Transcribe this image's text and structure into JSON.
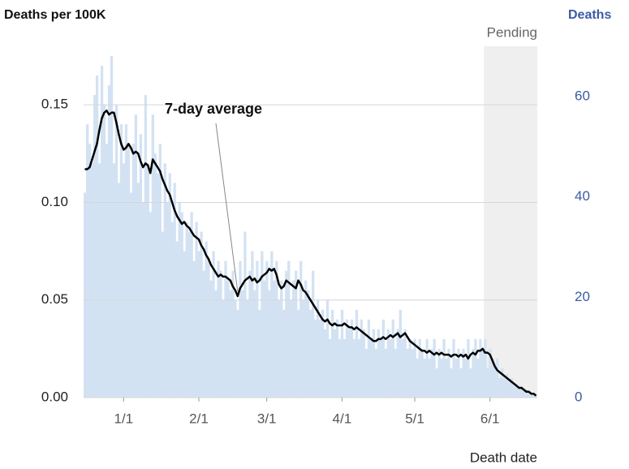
{
  "chart_data": {
    "type": "bar_line",
    "title": "Deaths per 100K",
    "y2_title": "Deaths",
    "x_label": "Death date",
    "pending_label": "Pending",
    "pending_from": "5/30",
    "annotation": {
      "text": "7-day average",
      "x": "2/17"
    },
    "x": [
      "12/16",
      "12/17",
      "12/18",
      "12/19",
      "12/20",
      "12/21",
      "12/22",
      "12/23",
      "12/24",
      "12/25",
      "12/26",
      "12/27",
      "12/28",
      "12/29",
      "12/30",
      "12/31",
      "1/1",
      "1/2",
      "1/3",
      "1/4",
      "1/5",
      "1/6",
      "1/7",
      "1/8",
      "1/9",
      "1/10",
      "1/11",
      "1/12",
      "1/13",
      "1/14",
      "1/15",
      "1/16",
      "1/17",
      "1/18",
      "1/19",
      "1/20",
      "1/21",
      "1/22",
      "1/23",
      "1/24",
      "1/25",
      "1/26",
      "1/27",
      "1/28",
      "1/29",
      "1/30",
      "1/31",
      "2/1",
      "2/2",
      "2/3",
      "2/4",
      "2/5",
      "2/6",
      "2/7",
      "2/8",
      "2/9",
      "2/10",
      "2/11",
      "2/12",
      "2/13",
      "2/14",
      "2/15",
      "2/16",
      "2/17",
      "2/18",
      "2/19",
      "2/20",
      "2/21",
      "2/22",
      "2/23",
      "2/24",
      "2/25",
      "2/26",
      "2/27",
      "2/28",
      "3/1",
      "3/2",
      "3/3",
      "3/4",
      "3/5",
      "3/6",
      "3/7",
      "3/8",
      "3/9",
      "3/10",
      "3/11",
      "3/12",
      "3/13",
      "3/14",
      "3/15",
      "3/16",
      "3/17",
      "3/18",
      "3/19",
      "3/20",
      "3/21",
      "3/22",
      "3/23",
      "3/24",
      "3/25",
      "3/26",
      "3/27",
      "3/28",
      "3/29",
      "3/30",
      "3/31",
      "4/1",
      "4/2",
      "4/3",
      "4/4",
      "4/5",
      "4/6",
      "4/7",
      "4/8",
      "4/9",
      "4/10",
      "4/11",
      "4/12",
      "4/13",
      "4/14",
      "4/15",
      "4/16",
      "4/17",
      "4/18",
      "4/19",
      "4/20",
      "4/21",
      "4/22",
      "4/23",
      "4/24",
      "4/25",
      "4/26",
      "4/27",
      "4/28",
      "4/29",
      "4/30",
      "5/1",
      "5/2",
      "5/3",
      "5/4",
      "5/5",
      "5/6",
      "5/7",
      "5/8",
      "5/9",
      "5/10",
      "5/11",
      "5/12",
      "5/13",
      "5/14",
      "5/15",
      "5/16",
      "5/17",
      "5/18",
      "5/19",
      "5/20",
      "5/21",
      "5/22",
      "5/23",
      "5/24",
      "5/25",
      "5/26",
      "5/27",
      "5/28",
      "5/29",
      "5/30",
      "5/31",
      "6/1",
      "6/2",
      "6/3",
      "6/4",
      "6/5",
      "6/6",
      "6/7",
      "6/8",
      "6/9",
      "6/10",
      "6/11",
      "6/12",
      "6/13",
      "6/14",
      "6/15",
      "6/16",
      "6/17",
      "6/18",
      "6/19",
      "6/20"
    ],
    "series": [
      {
        "type": "bar",
        "color": "#d3e2f3",
        "values": [
          0.105,
          0.14,
          0.13,
          0.12,
          0.155,
          0.165,
          0.12,
          0.17,
          0.15,
          0.13,
          0.16,
          0.175,
          0.12,
          0.15,
          0.11,
          0.14,
          0.12,
          0.14,
          0.13,
          0.105,
          0.13,
          0.145,
          0.11,
          0.135,
          0.1,
          0.155,
          0.12,
          0.095,
          0.145,
          0.125,
          0.115,
          0.13,
          0.085,
          0.12,
          0.1,
          0.115,
          0.09,
          0.11,
          0.08,
          0.1,
          0.095,
          0.075,
          0.09,
          0.085,
          0.095,
          0.07,
          0.09,
          0.075,
          0.085,
          0.065,
          0.08,
          0.07,
          0.06,
          0.075,
          0.055,
          0.07,
          0.065,
          0.05,
          0.07,
          0.06,
          0.055,
          0.065,
          0.05,
          0.045,
          0.07,
          0.055,
          0.085,
          0.05,
          0.065,
          0.075,
          0.055,
          0.07,
          0.045,
          0.075,
          0.06,
          0.07,
          0.055,
          0.075,
          0.06,
          0.07,
          0.05,
          0.06,
          0.045,
          0.065,
          0.07,
          0.05,
          0.06,
          0.065,
          0.045,
          0.07,
          0.05,
          0.06,
          0.055,
          0.045,
          0.065,
          0.04,
          0.05,
          0.04,
          0.045,
          0.035,
          0.05,
          0.03,
          0.045,
          0.035,
          0.04,
          0.03,
          0.045,
          0.03,
          0.04,
          0.035,
          0.04,
          0.03,
          0.045,
          0.03,
          0.04,
          0.035,
          0.025,
          0.04,
          0.03,
          0.035,
          0.025,
          0.035,
          0.03,
          0.04,
          0.025,
          0.035,
          0.03,
          0.04,
          0.025,
          0.035,
          0.045,
          0.03,
          0.035,
          0.025,
          0.03,
          0.025,
          0.03,
          0.02,
          0.03,
          0.025,
          0.02,
          0.03,
          0.02,
          0.025,
          0.03,
          0.015,
          0.025,
          0.02,
          0.03,
          0.02,
          0.025,
          0.015,
          0.03,
          0.02,
          0.025,
          0.015,
          0.025,
          0.02,
          0.03,
          0.015,
          0.025,
          0.03,
          0.02,
          0.03,
          0.025,
          0.03,
          0.015,
          0.025,
          0.02,
          0.015,
          0.02,
          0.01,
          0.015,
          0.01,
          0.012,
          0.008,
          0.01,
          0.006,
          0.007,
          0.005,
          0.006,
          0.004,
          0.004,
          0.003,
          0.002,
          0.002,
          0.001
        ]
      },
      {
        "type": "line",
        "color": "#000000",
        "values": [
          0.117,
          0.117,
          0.118,
          0.122,
          0.126,
          0.13,
          0.137,
          0.143,
          0.146,
          0.147,
          0.145,
          0.146,
          0.146,
          0.141,
          0.135,
          0.13,
          0.127,
          0.128,
          0.13,
          0.128,
          0.125,
          0.126,
          0.125,
          0.121,
          0.118,
          0.12,
          0.119,
          0.115,
          0.122,
          0.12,
          0.118,
          0.116,
          0.112,
          0.109,
          0.106,
          0.104,
          0.1,
          0.096,
          0.093,
          0.091,
          0.089,
          0.09,
          0.088,
          0.087,
          0.085,
          0.083,
          0.082,
          0.081,
          0.078,
          0.076,
          0.073,
          0.071,
          0.068,
          0.066,
          0.064,
          0.062,
          0.063,
          0.062,
          0.062,
          0.061,
          0.06,
          0.057,
          0.055,
          0.052,
          0.056,
          0.058,
          0.06,
          0.061,
          0.062,
          0.06,
          0.061,
          0.059,
          0.06,
          0.062,
          0.063,
          0.064,
          0.066,
          0.065,
          0.066,
          0.063,
          0.058,
          0.056,
          0.057,
          0.06,
          0.059,
          0.058,
          0.057,
          0.056,
          0.06,
          0.058,
          0.055,
          0.054,
          0.052,
          0.05,
          0.048,
          0.046,
          0.044,
          0.042,
          0.04,
          0.039,
          0.04,
          0.038,
          0.037,
          0.038,
          0.037,
          0.037,
          0.037,
          0.038,
          0.037,
          0.036,
          0.036,
          0.035,
          0.036,
          0.035,
          0.034,
          0.033,
          0.032,
          0.031,
          0.03,
          0.029,
          0.029,
          0.03,
          0.03,
          0.031,
          0.03,
          0.031,
          0.032,
          0.031,
          0.032,
          0.033,
          0.031,
          0.032,
          0.033,
          0.031,
          0.029,
          0.028,
          0.027,
          0.026,
          0.025,
          0.024,
          0.024,
          0.023,
          0.024,
          0.023,
          0.022,
          0.023,
          0.022,
          0.023,
          0.022,
          0.022,
          0.022,
          0.021,
          0.022,
          0.022,
          0.021,
          0.022,
          0.021,
          0.022,
          0.02,
          0.022,
          0.023,
          0.022,
          0.024,
          0.024,
          0.025,
          0.023,
          0.023,
          0.022,
          0.019,
          0.016,
          0.014,
          0.013,
          0.012,
          0.011,
          0.01,
          0.009,
          0.008,
          0.007,
          0.006,
          0.005,
          0.005,
          0.004,
          0.003,
          0.003,
          0.002,
          0.002,
          0.001
        ]
      }
    ],
    "xticks": [
      "1/1",
      "2/1",
      "3/1",
      "4/1",
      "5/1",
      "6/1"
    ],
    "ylim": [
      0,
      0.18
    ],
    "yticks": [
      {
        "value": 0,
        "label": "0.00"
      },
      0.05,
      {
        "value": 0.1,
        "label": "0.10"
      },
      0.15
    ],
    "y2lim": [
      0,
      70
    ],
    "y2ticks": [
      0,
      20,
      40,
      60
    ],
    "y2_color": "#3b5ba5",
    "grid": true
  }
}
